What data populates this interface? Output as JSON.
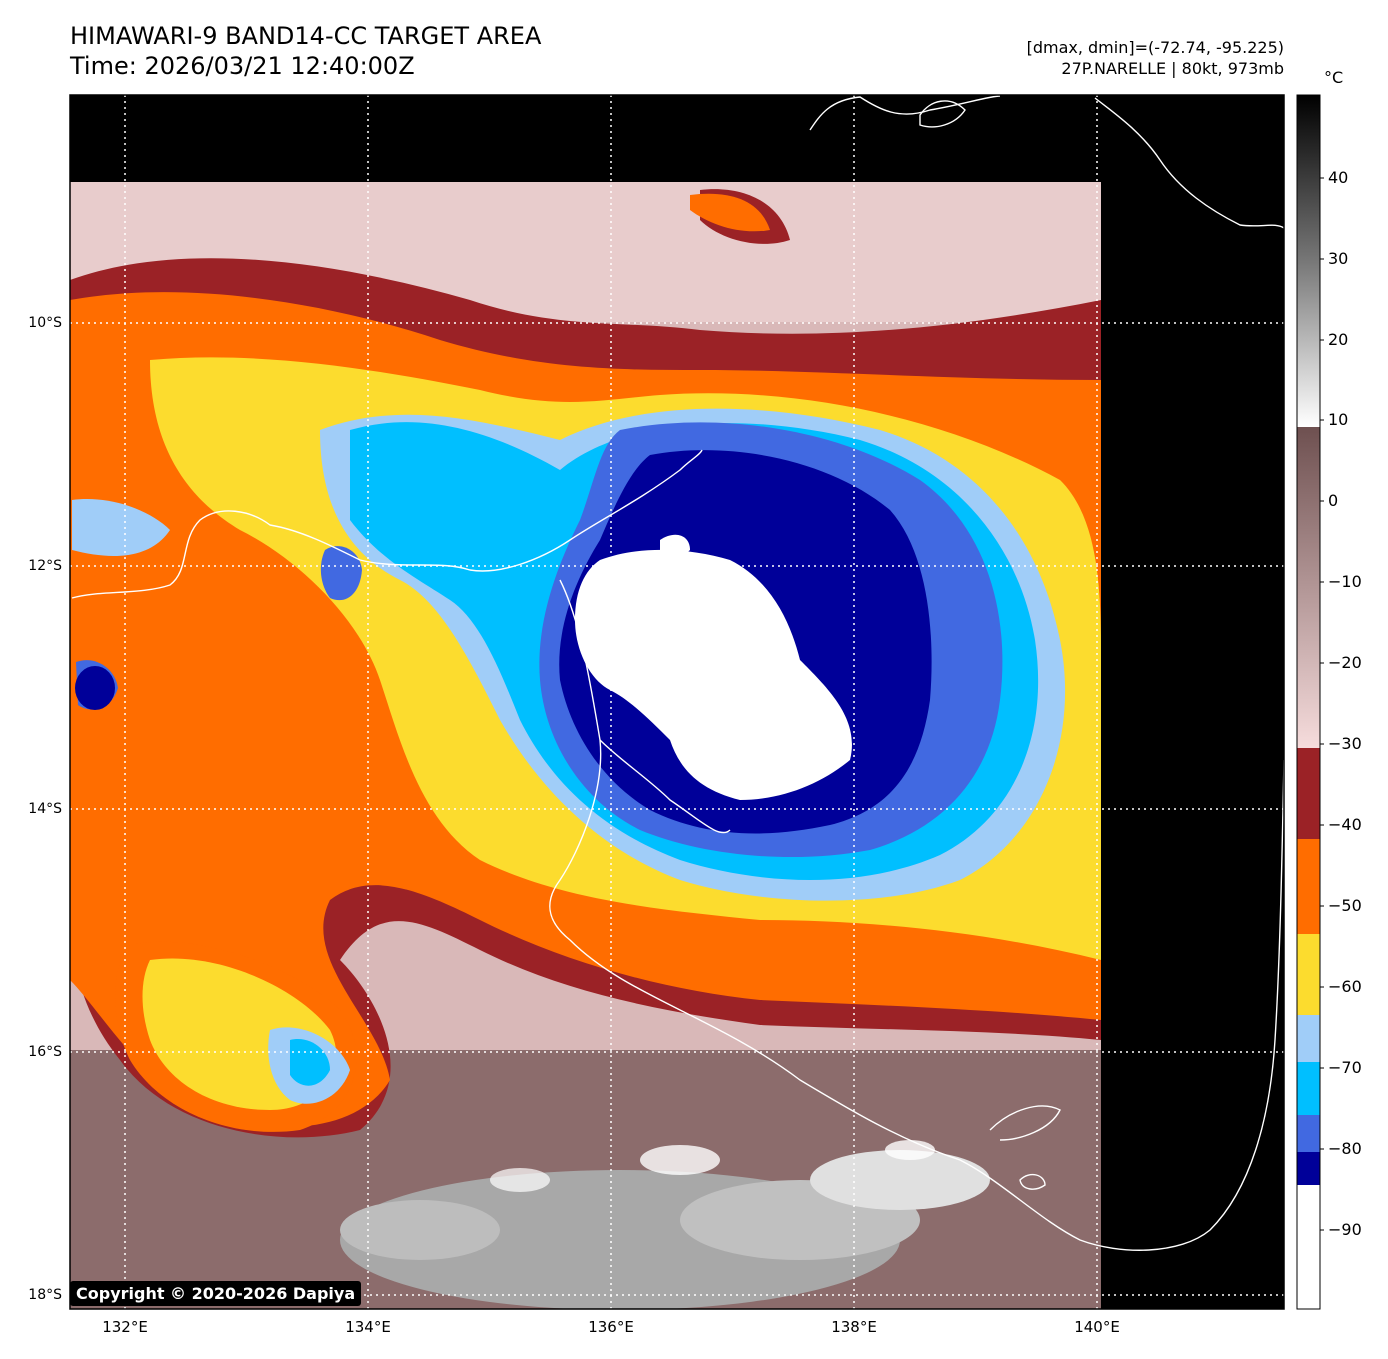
{
  "header": {
    "title_line1": "HIMAWARI-9 BAND14-CC TARGET AREA",
    "title_line2": "Time: 2026/03/21 12:40:00Z",
    "info_line1": "[dmax, dmin]=(-72.74, -95.225)",
    "info_line2": "27P.NARELLE | 80kt, 973mb"
  },
  "axes": {
    "lat_labels": [
      "10°S",
      "12°S",
      "14°S",
      "16°S",
      "18°S"
    ],
    "lon_labels": [
      "132°E",
      "134°E",
      "136°E",
      "138°E",
      "140°E"
    ]
  },
  "colorbar": {
    "unit": "°C",
    "ticks": [
      "40",
      "30",
      "20",
      "10",
      "0",
      "−10",
      "−20",
      "−30",
      "−40",
      "−50",
      "−60",
      "−70",
      "−80",
      "−90"
    ],
    "colors": {
      "warm_black": "#000000",
      "grey_scale": "#8a8a8a",
      "pink_brown": "#c8a6a6",
      "dark_red": "#9b2226",
      "orange": "#ff6d00",
      "yellow": "#fcdc2e",
      "light_blue": "#a0cdf8",
      "sky_blue": "#00bfff",
      "royal_blue": "#4169e1",
      "navy": "#000099",
      "white": "#ffffff"
    }
  },
  "copyright": "Copyright © 2020-2026 Dapiya"
}
